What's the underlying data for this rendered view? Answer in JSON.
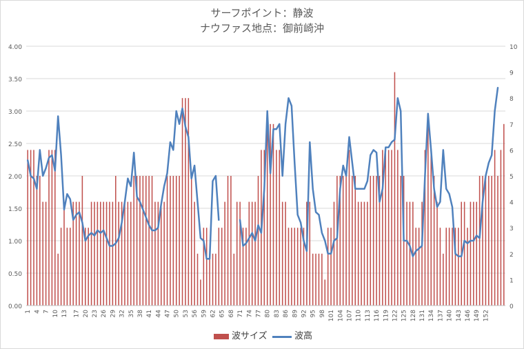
{
  "chart_data": {
    "type": "bar",
    "title_line1": "サーフポイント：静波",
    "title_line2": "ナウファス地点：御前崎沖",
    "x_tick_labels": [
      "1",
      "4",
      "7",
      "10",
      "13",
      "17",
      "20",
      "23",
      "26",
      "29",
      "32",
      "35",
      "38",
      "41",
      "44",
      "47",
      "50",
      "53",
      "56",
      "59",
      "62",
      "65",
      "68",
      "71",
      "74",
      "77",
      "80",
      "83",
      "86",
      "89",
      "92",
      "95",
      "98",
      "101",
      "104",
      "107",
      "110",
      "113",
      "116",
      "119",
      "122",
      "125",
      "128",
      "131",
      "134",
      "137",
      "140",
      "143",
      "146",
      "149",
      "152"
    ],
    "y_left_ticks": [
      "0.00",
      "0.50",
      "1.00",
      "1.50",
      "2.00",
      "2.50",
      "3.00",
      "3.50",
      "4.00"
    ],
    "y_right_ticks": [
      "0",
      "1",
      "2",
      "3",
      "4",
      "5",
      "6",
      "7",
      "8",
      "9",
      "10"
    ],
    "ylim_left": [
      0,
      4
    ],
    "ylim_right": [
      0,
      10
    ],
    "series": [
      {
        "name": "波サイズ",
        "axis": "left",
        "color": "#c0504d",
        "values": [
          2.4,
          2.4,
          2.4,
          2.0,
          2.0,
          1.6,
          1.6,
          2.4,
          2.4,
          2.4,
          0.8,
          1.2,
          1.6,
          1.2,
          1.2,
          1.6,
          1.6,
          1.6,
          2.0,
          1.2,
          1.2,
          1.6,
          1.6,
          1.6,
          1.6,
          1.6,
          1.6,
          1.6,
          1.6,
          2.0,
          1.6,
          1.6,
          1.6,
          1.6,
          1.6,
          2.0,
          2.0,
          2.0,
          2.0,
          2.0,
          2.0,
          2.0,
          1.6,
          1.6,
          1.6,
          1.6,
          2.0,
          2.0,
          2.0,
          2.0,
          2.0,
          3.2,
          3.2,
          3.2,
          2.0,
          1.6,
          0.8,
          0.4,
          1.2,
          1.2,
          0.8,
          0.8,
          0.8,
          1.2,
          1.2,
          1.6,
          2.0,
          2.0,
          0.8,
          1.6,
          1.6,
          1.2,
          1.2,
          1.6,
          1.6,
          1.6,
          2.0,
          2.4,
          2.4,
          2.8,
          2.8,
          2.8,
          2.4,
          2.4,
          1.6,
          1.6,
          1.2,
          1.2,
          1.2,
          1.2,
          1.2,
          1.2,
          1.6,
          1.6,
          0.8,
          0.8,
          0.8,
          0.8,
          0.4,
          1.2,
          1.2,
          1.6,
          2.0,
          2.0,
          2.0,
          2.0,
          2.4,
          2.0,
          2.0,
          1.6,
          1.6,
          1.6,
          1.6,
          2.0,
          2.0,
          2.0,
          2.0,
          2.4,
          2.4,
          2.4,
          2.4,
          3.6,
          2.4,
          2.0,
          2.0,
          1.6,
          1.6,
          1.6,
          1.2,
          1.2,
          1.6,
          2.4,
          2.8,
          2.4,
          2.0,
          1.6,
          1.2,
          0.8,
          1.2,
          1.2,
          1.2,
          1.2,
          1.2,
          1.6,
          1.6,
          1.2,
          1.6,
          1.6,
          1.6,
          2.0,
          2.0,
          2.0,
          2.0,
          2.0,
          2.4,
          2.0,
          2.4,
          2.8
        ]
      },
      {
        "name": "波高",
        "axis": "right",
        "color": "#4f81bd",
        "values": [
          5.6,
          5.0,
          4.9,
          4.5,
          6.0,
          5.0,
          5.3,
          5.7,
          5.8,
          5.2,
          7.3,
          5.8,
          3.7,
          4.3,
          4.1,
          3.3,
          3.5,
          3.6,
          3.2,
          2.5,
          2.7,
          2.8,
          2.7,
          2.9,
          2.8,
          2.9,
          2.6,
          2.3,
          2.3,
          2.4,
          2.6,
          3.2,
          4.0,
          4.9,
          4.6,
          5.9,
          4.2,
          4.0,
          3.7,
          3.4,
          3.1,
          2.9,
          2.9,
          3.0,
          3.9,
          4.6,
          5.1,
          6.3,
          6.0,
          7.5,
          7.0,
          7.6,
          6.9,
          6.5,
          4.9,
          5.4,
          4.0,
          2.6,
          2.5,
          1.8,
          1.8,
          4.8,
          5.0,
          3.3,
          null,
          null,
          null,
          null,
          null,
          null,
          3.3,
          2.3,
          2.4,
          2.6,
          2.8,
          2.5,
          3.1,
          2.8,
          4.5,
          7.5,
          5.1,
          6.8,
          6.8,
          7.0,
          5.0,
          7.0,
          8.0,
          7.7,
          5.5,
          3.5,
          3.2,
          2.5,
          2.1,
          6.3,
          4.5,
          3.6,
          3.5,
          2.8,
          2.5,
          2.0,
          2.0,
          2.5,
          2.6,
          4.5,
          5.4,
          5.0,
          6.5,
          5.5,
          4.5,
          4.5,
          4.5,
          4.5,
          4.8,
          5.8,
          6.0,
          5.9,
          4.0,
          4.5,
          6.1,
          6.1,
          6.3,
          6.4,
          8.0,
          7.5,
          2.5,
          2.5,
          2.3,
          1.9,
          2.1,
          2.2,
          2.3,
          5.0,
          7.4,
          6.0,
          4.5,
          3.8,
          4.0,
          6.0,
          4.5,
          4.3,
          3.8,
          2.0,
          1.9,
          1.9,
          2.5,
          2.4,
          2.5,
          2.5,
          2.7,
          2.6,
          4.0,
          5.0,
          5.5,
          5.8,
          7.5,
          8.4
        ]
      }
    ],
    "legend_position": "bottom",
    "grid": true
  },
  "legend": {
    "bar_label": "波サイズ",
    "line_label": "波高"
  }
}
